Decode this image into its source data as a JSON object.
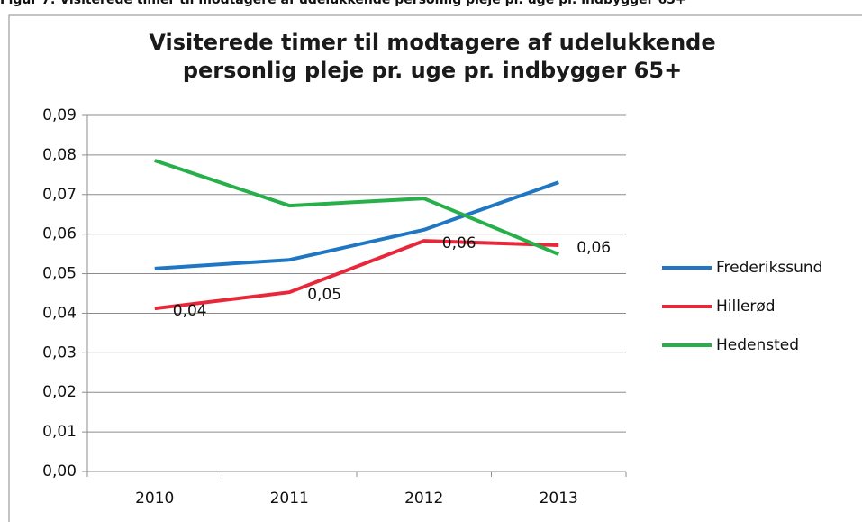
{
  "caption": "Figur 7: Visiterede timer til modtagere af udelukkende personlig pleje pr. uge pr. indbygger 65+",
  "chart_data": {
    "type": "line",
    "title": [
      "Visiterede timer til modtagere af udelukkende",
      "personlig pleje pr. uge pr. indbygger 65+"
    ],
    "categories": [
      "2010",
      "2011",
      "2012",
      "2013"
    ],
    "series": [
      {
        "name": "Frederikssund",
        "color": "#1f77c4",
        "values": [
          0.0513,
          0.0535,
          0.0611,
          0.0731
        ]
      },
      {
        "name": "Hillerød",
        "color": "#e8283a",
        "values": [
          0.0412,
          0.0453,
          0.0583,
          0.0572
        ],
        "value_labels": [
          "0,04",
          "0,05",
          "0,06",
          "0,06"
        ]
      },
      {
        "name": "Hedensted",
        "color": "#27b04a",
        "values": [
          0.0786,
          0.0672,
          0.069,
          0.0549
        ]
      }
    ],
    "ylim": [
      0,
      0.09
    ],
    "yticks": [
      {
        "value": 0,
        "label": "0,00"
      },
      {
        "value": 0.01,
        "label": "0,01"
      },
      {
        "value": 0.02,
        "label": "0,02"
      },
      {
        "value": 0.03,
        "label": "0,03"
      },
      {
        "value": 0.04,
        "label": "0,04"
      },
      {
        "value": 0.05,
        "label": "0,05"
      },
      {
        "value": 0.06,
        "label": "0,06"
      },
      {
        "value": 0.07,
        "label": "0,07"
      },
      {
        "value": 0.08,
        "label": "0,08"
      },
      {
        "value": 0.09,
        "label": "0,09"
      }
    ],
    "grid": true,
    "legend": "right"
  }
}
